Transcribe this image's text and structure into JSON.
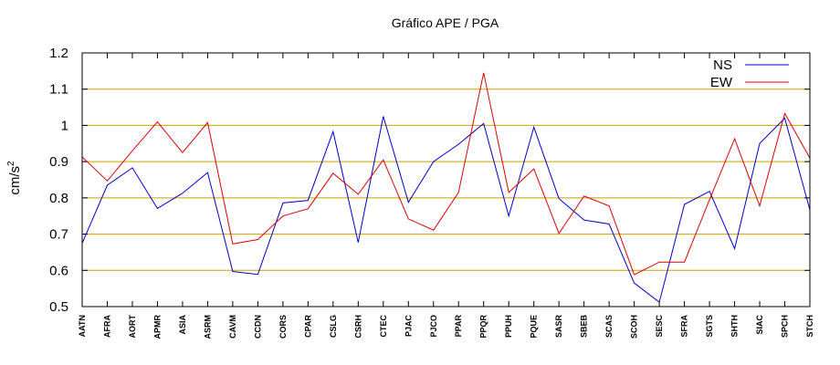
{
  "chart_data": {
    "type": "line",
    "title": "Gráfico  APE / PGA",
    "ylabel": "cm/s",
    "ylabel_sup": "2",
    "xlabel": "",
    "ylim": [
      0.5,
      1.2
    ],
    "yticks": [
      "0.5",
      "0.6",
      "0.7",
      "0.8",
      "0.9",
      "1",
      "1.1",
      "1.2"
    ],
    "grid": "horizontal",
    "legend_position": "top-right",
    "categories": [
      "AATN",
      "AFRA",
      "AORT",
      "APMR",
      "ASIA",
      "ASRM",
      "CAVM",
      "CCDN",
      "CORS",
      "CPAR",
      "CSLG",
      "CSRH",
      "CTEC",
      "PJAC",
      "PJCO",
      "PPAR",
      "PPQR",
      "PPUH",
      "PQUE",
      "SASR",
      "SBEB",
      "SCAS",
      "SCOH",
      "SESC",
      "SFRA",
      "SGTS",
      "SHTH",
      "SIAC",
      "SPCH",
      "STCH"
    ],
    "series": [
      {
        "name": "NS",
        "color": "#0000cc",
        "values": [
          0.675,
          0.835,
          0.883,
          0.771,
          0.813,
          0.87,
          0.597,
          0.589,
          0.786,
          0.793,
          0.983,
          0.677,
          1.025,
          0.788,
          0.9,
          0.948,
          1.005,
          0.75,
          0.995,
          0.798,
          0.739,
          0.728,
          0.565,
          0.512,
          0.782,
          0.818,
          0.66,
          0.95,
          1.02,
          0.767
        ]
      },
      {
        "name": "EW",
        "color": "#dd0000",
        "values": [
          0.913,
          0.847,
          0.93,
          1.01,
          0.925,
          1.008,
          0.673,
          0.685,
          0.75,
          0.77,
          0.868,
          0.81,
          0.905,
          0.742,
          0.711,
          0.815,
          1.145,
          0.815,
          0.88,
          0.702,
          0.805,
          0.778,
          0.588,
          0.623,
          0.623,
          0.795,
          0.963,
          0.778,
          1.033,
          0.91
        ]
      }
    ]
  }
}
